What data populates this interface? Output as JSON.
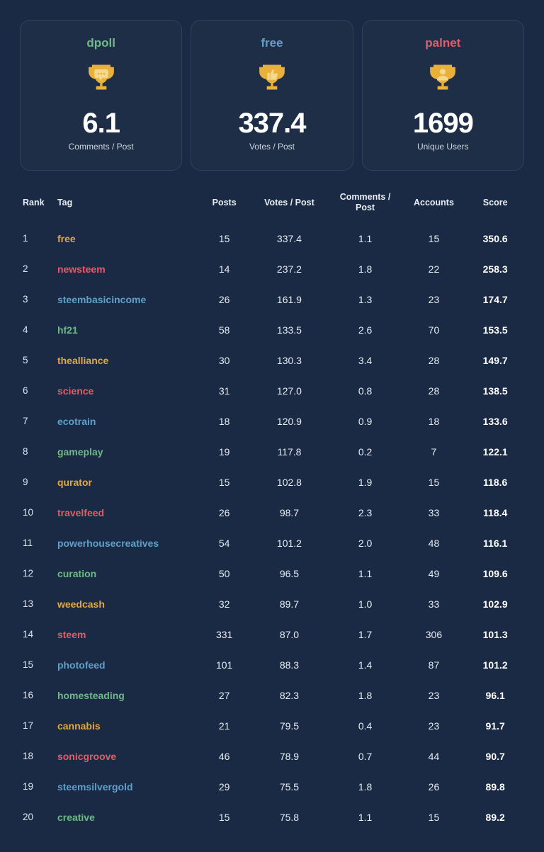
{
  "colors": {
    "green": "#6fb888",
    "blue": "#5ea0c9",
    "red": "#e65a67",
    "gold": "#e2a83a",
    "trophy": "#e9b13a",
    "inner": "#f4d98d"
  },
  "cards": [
    {
      "title": "dpoll",
      "color_key": "green",
      "icon": "chat",
      "value": "6.1",
      "sub": "Comments / Post"
    },
    {
      "title": "free",
      "color_key": "blue",
      "icon": "thumb",
      "value": "337.4",
      "sub": "Votes / Post"
    },
    {
      "title": "palnet",
      "color_key": "red",
      "icon": "user",
      "value": "1699",
      "sub": "Unique Users"
    }
  ],
  "headers": {
    "rank": "Rank",
    "tag": "Tag",
    "posts": "Posts",
    "votes": "Votes / Post",
    "comments": "Comments / Post",
    "accounts": "Accounts",
    "score": "Score"
  },
  "rows": [
    {
      "rank": 1,
      "tag": "free",
      "color_key": "gold",
      "posts": 15,
      "votes": "337.4",
      "comments": "1.1",
      "accounts": 15,
      "score": "350.6"
    },
    {
      "rank": 2,
      "tag": "newsteem",
      "color_key": "red",
      "posts": 14,
      "votes": "237.2",
      "comments": "1.8",
      "accounts": 22,
      "score": "258.3"
    },
    {
      "rank": 3,
      "tag": "steembasicincome",
      "color_key": "blue",
      "posts": 26,
      "votes": "161.9",
      "comments": "1.3",
      "accounts": 23,
      "score": "174.7"
    },
    {
      "rank": 4,
      "tag": "hf21",
      "color_key": "green",
      "posts": 58,
      "votes": "133.5",
      "comments": "2.6",
      "accounts": 70,
      "score": "153.5"
    },
    {
      "rank": 5,
      "tag": "thealliance",
      "color_key": "gold",
      "posts": 30,
      "votes": "130.3",
      "comments": "3.4",
      "accounts": 28,
      "score": "149.7"
    },
    {
      "rank": 6,
      "tag": "science",
      "color_key": "red",
      "posts": 31,
      "votes": "127.0",
      "comments": "0.8",
      "accounts": 28,
      "score": "138.5"
    },
    {
      "rank": 7,
      "tag": "ecotrain",
      "color_key": "blue",
      "posts": 18,
      "votes": "120.9",
      "comments": "0.9",
      "accounts": 18,
      "score": "133.6"
    },
    {
      "rank": 8,
      "tag": "gameplay",
      "color_key": "green",
      "posts": 19,
      "votes": "117.8",
      "comments": "0.2",
      "accounts": 7,
      "score": "122.1"
    },
    {
      "rank": 9,
      "tag": "qurator",
      "color_key": "gold",
      "posts": 15,
      "votes": "102.8",
      "comments": "1.9",
      "accounts": 15,
      "score": "118.6"
    },
    {
      "rank": 10,
      "tag": "travelfeed",
      "color_key": "red",
      "posts": 26,
      "votes": "98.7",
      "comments": "2.3",
      "accounts": 33,
      "score": "118.4"
    },
    {
      "rank": 11,
      "tag": "powerhousecreatives",
      "color_key": "blue",
      "posts": 54,
      "votes": "101.2",
      "comments": "2.0",
      "accounts": 48,
      "score": "116.1"
    },
    {
      "rank": 12,
      "tag": "curation",
      "color_key": "green",
      "posts": 50,
      "votes": "96.5",
      "comments": "1.1",
      "accounts": 49,
      "score": "109.6"
    },
    {
      "rank": 13,
      "tag": "weedcash",
      "color_key": "gold",
      "posts": 32,
      "votes": "89.7",
      "comments": "1.0",
      "accounts": 33,
      "score": "102.9"
    },
    {
      "rank": 14,
      "tag": "steem",
      "color_key": "red",
      "posts": 331,
      "votes": "87.0",
      "comments": "1.7",
      "accounts": 306,
      "score": "101.3"
    },
    {
      "rank": 15,
      "tag": "photofeed",
      "color_key": "blue",
      "posts": 101,
      "votes": "88.3",
      "comments": "1.4",
      "accounts": 87,
      "score": "101.2"
    },
    {
      "rank": 16,
      "tag": "homesteading",
      "color_key": "green",
      "posts": 27,
      "votes": "82.3",
      "comments": "1.8",
      "accounts": 23,
      "score": "96.1"
    },
    {
      "rank": 17,
      "tag": "cannabis",
      "color_key": "gold",
      "posts": 21,
      "votes": "79.5",
      "comments": "0.4",
      "accounts": 23,
      "score": "91.7"
    },
    {
      "rank": 18,
      "tag": "sonicgroove",
      "color_key": "red",
      "posts": 46,
      "votes": "78.9",
      "comments": "0.7",
      "accounts": 44,
      "score": "90.7"
    },
    {
      "rank": 19,
      "tag": "steemsilvergold",
      "color_key": "blue",
      "posts": 29,
      "votes": "75.5",
      "comments": "1.8",
      "accounts": 26,
      "score": "89.8"
    },
    {
      "rank": 20,
      "tag": "creative",
      "color_key": "green",
      "posts": 15,
      "votes": "75.8",
      "comments": "1.1",
      "accounts": 15,
      "score": "89.2"
    }
  ]
}
